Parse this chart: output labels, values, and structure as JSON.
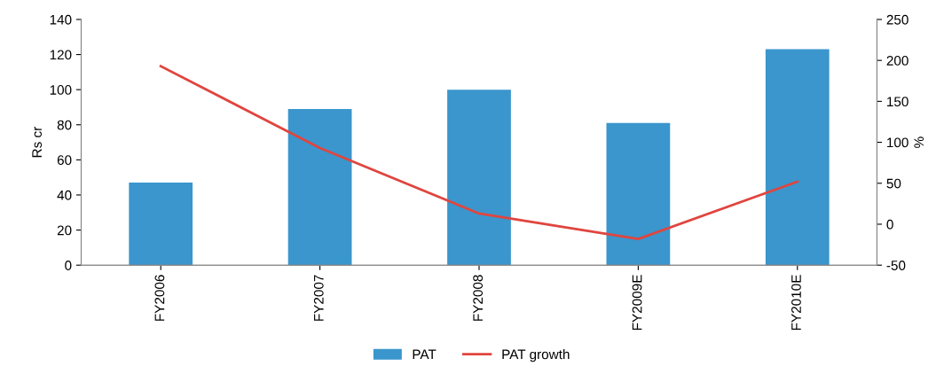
{
  "chart_data": {
    "type": "bar",
    "categories": [
      "FY2006",
      "FY2007",
      "FY2008",
      "FY2009E",
      "FY2010E"
    ],
    "series": [
      {
        "name": "PAT",
        "color": "#3a96cc",
        "values": [
          47,
          89,
          100,
          81,
          123
        ]
      },
      {
        "name": "PAT growth",
        "type": "line",
        "axis": "y2",
        "color": "#e0453f",
        "values": [
          193,
          93,
          13,
          -18,
          52
        ]
      }
    ],
    "ylabel": "Rs cr",
    "y2label": "%",
    "ylim": [
      0,
      140
    ],
    "yticks": [
      0,
      20,
      40,
      60,
      80,
      100,
      120,
      140
    ],
    "y2lim": [
      -50,
      250
    ],
    "y2ticks": [
      -50,
      0,
      50,
      100,
      150,
      200,
      250
    ],
    "legend": "bottom",
    "grid": false,
    "marker": "none",
    "line_style": "solid"
  }
}
